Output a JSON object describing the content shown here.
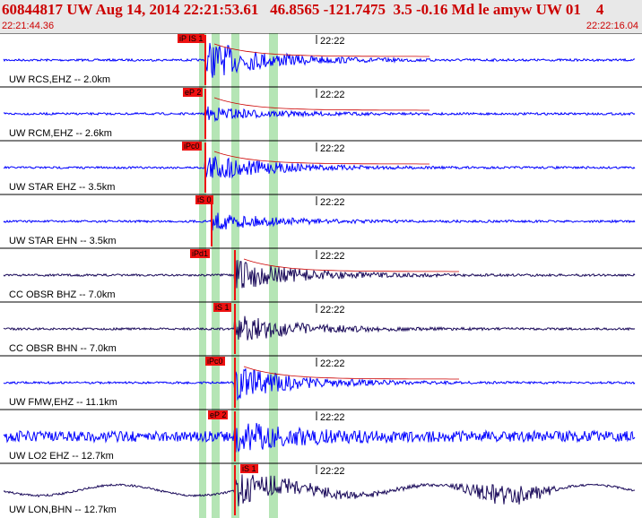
{
  "header": {
    "title": "60844817 UW Aug 14, 2014 22:21:53.61   46.8565 -121.7475  3.5 -0.16 Md le amyw UW 01    4",
    "start_time": "22:21:44.36",
    "end_time": "22:22:16.04"
  },
  "colors": {
    "vertical_trace": "#0000ff",
    "horizontal_trace": "#1a0a5a",
    "pick_marker": "#ee1111",
    "pick_window": "#a8e0a8",
    "title_text": "#cc0000",
    "header_bg": "#e8e8e8",
    "coda_fit": "#cc0000"
  },
  "traces": [
    {
      "label": "UW RCS,EHZ -- 2.0km",
      "time_label": "22:22",
      "pick": "iP IS 1",
      "component": "vertical"
    },
    {
      "label": "UW RCM,EHZ -- 2.6km",
      "time_label": "22:22",
      "pick": "eP 2",
      "component": "vertical"
    },
    {
      "label": "UW STAR EHZ -- 3.5km",
      "time_label": "22:22",
      "pick": "iPc0",
      "component": "vertical"
    },
    {
      "label": "UW STAR EHN -- 3.5km",
      "time_label": "22:22",
      "pick": "iS 0",
      "component": "vertical"
    },
    {
      "label": "CC OBSR BHZ -- 7.0km",
      "time_label": "22:22",
      "pick": "iPd1",
      "component": "horizontal"
    },
    {
      "label": "CC OBSR BHN -- 7.0km",
      "time_label": "22:22",
      "pick": "iS 1",
      "component": "horizontal"
    },
    {
      "label": "UW FMW,EHZ -- 11.1km",
      "time_label": "22:22",
      "pick": "iPc0",
      "component": "vertical"
    },
    {
      "label": "UW LO2 EHZ -- 12.7km",
      "time_label": "22:22",
      "pick": "eP 2",
      "component": "vertical"
    },
    {
      "label": "UW LON,BHN -- 12.7km",
      "time_label": "22:22",
      "pick": "iS 1",
      "component": "horizontal"
    }
  ]
}
